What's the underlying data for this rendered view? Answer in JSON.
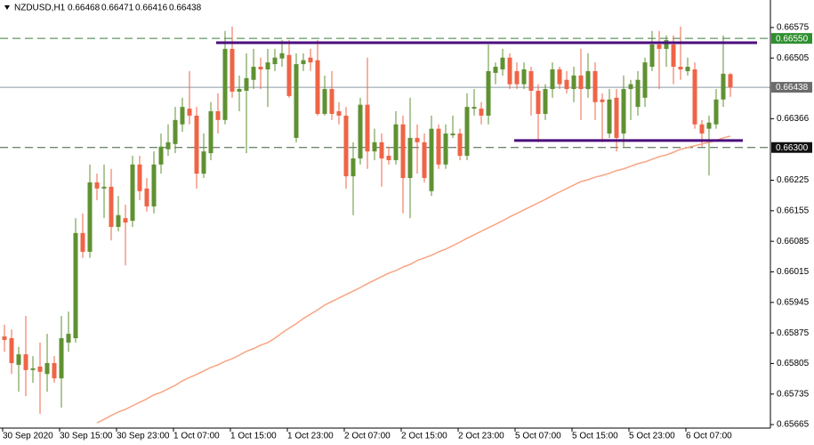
{
  "chart_data": {
    "type": "candlestick",
    "symbol": "NZDUSD,H1",
    "ohlc": [
      0.66468,
      0.66471,
      0.66416,
      0.66438
    ],
    "categories": [
      "30 Sep 2020",
      null,
      null,
      null,
      null,
      null,
      null,
      null,
      "30 Sep 15:00",
      null,
      null,
      null,
      null,
      null,
      null,
      null,
      "30 Sep 23:00",
      null,
      null,
      null,
      null,
      null,
      null,
      null,
      "1 Oct 07:00",
      null,
      null,
      null,
      null,
      null,
      null,
      null,
      "1 Oct 15:00",
      null,
      null,
      null,
      null,
      null,
      null,
      null,
      "1 Oct 23:00",
      null,
      null,
      null,
      null,
      null,
      null,
      null,
      "2 Oct 07:00",
      null,
      null,
      null,
      null,
      null,
      null,
      null,
      "2 Oct 15:00",
      null,
      null,
      null,
      null,
      null,
      null,
      null,
      "2 Oct 23:00",
      null,
      null,
      null,
      null,
      null,
      null,
      null,
      "5 Oct 07:00",
      null,
      null,
      null,
      null,
      null,
      null,
      null,
      "5 Oct 15:00",
      null,
      null,
      null,
      null,
      null,
      null,
      null,
      "5 Oct 23:00",
      null,
      null,
      null,
      null,
      null,
      null,
      null,
      "6 Oct 07:00",
      null,
      null,
      null,
      null,
      null,
      null
    ],
    "open": [
      0.65867,
      0.65863,
      0.65802,
      0.65826,
      0.6579,
      0.65798,
      0.65781,
      0.65806,
      0.65771,
      0.65853,
      0.65863,
      0.66104,
      0.66061,
      0.6622,
      0.66206,
      0.6621,
      0.66118,
      0.66138,
      0.66132,
      0.66261,
      0.66206,
      0.66165,
      0.66261,
      0.66296,
      0.66308,
      0.66353,
      0.66389,
      0.66373,
      0.6624,
      0.66287,
      0.66383,
      0.66363,
      0.66526,
      0.66428,
      0.6643,
      0.66455,
      0.66485,
      0.66479,
      0.66491,
      0.66504,
      0.66512,
      0.66322,
      0.66491,
      0.66506,
      0.665,
      0.66377,
      0.66434,
      0.66383,
      0.66373,
      0.66234,
      0.66275,
      0.66398,
      0.66291,
      0.66312,
      0.66281,
      0.66271,
      0.66353,
      0.6623,
      0.66322,
      0.66312,
      0.662,
      0.66343,
      0.66261,
      0.66328,
      0.66332,
      0.66281,
      0.66389,
      0.66389,
      0.66373,
      0.66471,
      0.66479,
      0.66506,
      0.66475,
      0.66445,
      0.66475,
      0.6643,
      0.66377,
      0.66434,
      0.66479,
      0.66455,
      0.66434,
      0.66465,
      0.66434,
      0.66475,
      0.6641,
      0.66332,
      0.66414,
      0.66332,
      0.66434,
      0.66393,
      0.66414,
      0.66485,
      0.66536,
      0.66526,
      0.66536,
      0.66485,
      0.66475,
      0.66479,
      0.66353,
      0.66343,
      0.66353,
      0.6641,
      0.66468
    ],
    "high": [
      0.65894,
      0.65883,
      0.65843,
      0.65914,
      0.65822,
      0.65853,
      0.65873,
      0.65822,
      0.65914,
      0.65924,
      0.66138,
      0.66149,
      0.66261,
      0.6624,
      0.66261,
      0.66251,
      0.66189,
      0.66169,
      0.66281,
      0.66281,
      0.6623,
      0.66291,
      0.66332,
      0.66353,
      0.66393,
      0.66414,
      0.66475,
      0.66393,
      0.66332,
      0.66404,
      0.66424,
      0.66567,
      0.66577,
      0.66465,
      0.66516,
      0.66526,
      0.66506,
      0.66526,
      0.66526,
      0.66546,
      0.66546,
      0.66516,
      0.66516,
      0.66526,
      0.66546,
      0.66465,
      0.66475,
      0.66404,
      0.66393,
      0.66312,
      0.66414,
      0.66506,
      0.66343,
      0.66332,
      0.66302,
      0.66383,
      0.66373,
      0.66414,
      0.66353,
      0.66332,
      0.66373,
      0.66353,
      0.66353,
      0.66373,
      0.66343,
      0.66424,
      0.66434,
      0.66404,
      0.66536,
      0.66495,
      0.66526,
      0.66516,
      0.66495,
      0.66495,
      0.66485,
      0.66445,
      0.66445,
      0.66495,
      0.66485,
      0.66475,
      0.66485,
      0.66526,
      0.66516,
      0.66495,
      0.66424,
      0.66434,
      0.66434,
      0.66465,
      0.66455,
      0.66475,
      0.66506,
      0.66567,
      0.66567,
      0.66557,
      0.66557,
      0.66577,
      0.66506,
      0.66495,
      0.66363,
      0.66373,
      0.66434,
      0.66557,
      0.66471
    ],
    "low": [
      0.65832,
      0.65781,
      0.6574,
      0.6573,
      0.65761,
      0.6569,
      0.6574,
      0.65761,
      0.65704,
      0.65832,
      0.65853,
      0.66047,
      0.66047,
      0.66179,
      0.66138,
      0.66087,
      0.66108,
      0.6603,
      0.66118,
      0.66179,
      0.66153,
      0.66149,
      0.6624,
      0.66281,
      0.66287,
      0.66336,
      0.66353,
      0.66206,
      0.6623,
      0.66271,
      0.66332,
      0.66353,
      0.66414,
      0.66383,
      0.66287,
      0.66434,
      0.66434,
      0.66393,
      0.66475,
      0.66485,
      0.66414,
      0.66312,
      0.66475,
      0.66475,
      0.66373,
      0.66373,
      0.66363,
      0.66353,
      0.66206,
      0.66145,
      0.66261,
      0.66251,
      0.66271,
      0.6621,
      0.66261,
      0.66261,
      0.66149,
      0.66138,
      0.6624,
      0.6622,
      0.66189,
      0.66251,
      0.66251,
      0.66322,
      0.66271,
      0.66271,
      0.66373,
      0.66353,
      0.66353,
      0.66445,
      0.66465,
      0.66434,
      0.66434,
      0.66434,
      0.66373,
      0.66312,
      0.66363,
      0.66414,
      0.66434,
      0.66424,
      0.66404,
      0.66363,
      0.66414,
      0.66363,
      0.66312,
      0.66322,
      0.66291,
      0.66302,
      0.66363,
      0.66373,
      0.66393,
      0.66475,
      0.66434,
      0.66485,
      0.66445,
      0.66455,
      0.66465,
      0.66343,
      0.66302,
      0.66236,
      0.66343,
      0.66393,
      0.66416
    ],
    "close": [
      0.65859,
      0.65806,
      0.65826,
      0.6579,
      0.65794,
      0.65786,
      0.65806,
      0.65771,
      0.65863,
      0.65873,
      0.66104,
      0.66061,
      0.6622,
      0.66206,
      0.6621,
      0.66118,
      0.66145,
      0.66128,
      0.66261,
      0.662,
      0.66165,
      0.66261,
      0.66302,
      0.66312,
      0.66363,
      0.66393,
      0.66373,
      0.6624,
      0.66291,
      0.66383,
      0.66363,
      0.66526,
      0.66428,
      0.66434,
      0.66459,
      0.66485,
      0.66479,
      0.66495,
      0.66506,
      0.66516,
      0.66418,
      0.66491,
      0.665,
      0.66495,
      0.66377,
      0.66434,
      0.66377,
      0.66373,
      0.66234,
      0.66275,
      0.66398,
      0.66291,
      0.66312,
      0.66275,
      0.66271,
      0.66353,
      0.6623,
      0.66322,
      0.66312,
      0.6623,
      0.66343,
      0.66261,
      0.66332,
      0.66332,
      0.66281,
      0.66393,
      0.66393,
      0.66373,
      0.66475,
      0.66485,
      0.66506,
      0.66445,
      0.66445,
      0.66479,
      0.6643,
      0.66377,
      0.66434,
      0.66479,
      0.66445,
      0.66434,
      0.66465,
      0.66434,
      0.66475,
      0.66404,
      0.66404,
      0.6641,
      0.66322,
      0.66434,
      0.66445,
      0.66455,
      0.66495,
      0.66536,
      0.66526,
      0.66546,
      0.66485,
      0.66479,
      0.66485,
      0.66353,
      0.66332,
      0.66357,
      0.6641,
      0.66469,
      0.66438
    ],
    "up_color": "#5f9132",
    "down_color": "#ef6446",
    "ma": {
      "color": "#f7a582",
      "values": [
        null,
        null,
        null,
        null,
        null,
        null,
        null,
        null,
        null,
        null,
        null,
        null,
        null,
        0.65669,
        0.65677,
        0.65686,
        0.65694,
        0.657,
        0.65708,
        0.65716,
        0.65724,
        0.65733,
        0.65739,
        0.65747,
        0.65755,
        0.65765,
        0.65773,
        0.6578,
        0.65788,
        0.65796,
        0.65802,
        0.6581,
        0.65816,
        0.65824,
        0.65833,
        0.65839,
        0.65847,
        0.65853,
        0.65863,
        0.65875,
        0.65886,
        0.65896,
        0.65908,
        0.65918,
        0.65928,
        0.65939,
        0.65947,
        0.65955,
        0.65963,
        0.65971,
        0.65979,
        0.65988,
        0.65996,
        0.66004,
        0.66012,
        0.66018,
        0.66026,
        0.66032,
        0.66041,
        0.66047,
        0.66053,
        0.66061,
        0.66067,
        0.66075,
        0.66083,
        0.66092,
        0.661,
        0.66108,
        0.66116,
        0.66124,
        0.66132,
        0.66141,
        0.66149,
        0.66157,
        0.66165,
        0.66173,
        0.66181,
        0.6619,
        0.66198,
        0.66206,
        0.66214,
        0.66222,
        0.66226,
        0.66232,
        0.66236,
        0.66241,
        0.66247,
        0.66251,
        0.66257,
        0.66263,
        0.66267,
        0.66273,
        0.66279,
        0.66283,
        0.66289,
        0.66296,
        0.663,
        0.66304,
        0.66308,
        0.66312,
        0.66316,
        0.66322,
        0.66326
      ]
    },
    "ylim": [
      0.65657,
      0.66638
    ],
    "yticks": [
      0.66575,
      0.66505,
      0.66366,
      0.66225,
      0.66155,
      0.66085,
      0.66015,
      0.65945,
      0.65875,
      0.65805,
      0.65735,
      0.65665
    ],
    "price_lines": [
      {
        "value": 0.6655,
        "label": "0.66550",
        "color": "#3f7f3f",
        "style": "dashed",
        "tag_color": "#2f8f2f"
      },
      {
        "value": 0.66438,
        "color": "#8a9aa8",
        "style": "solid",
        "tag_color": "#6b6b6b"
      },
      {
        "value": 0.663,
        "label": "0.66300",
        "color": "#3f5f3f",
        "style": "dashed",
        "tag_color": "#111111"
      }
    ],
    "trendlines": [
      {
        "value": 0.6654,
        "color": "#4b0f7c"
      },
      {
        "value": 0.66316,
        "color": "#4b0f7c"
      }
    ],
    "grid": false
  }
}
